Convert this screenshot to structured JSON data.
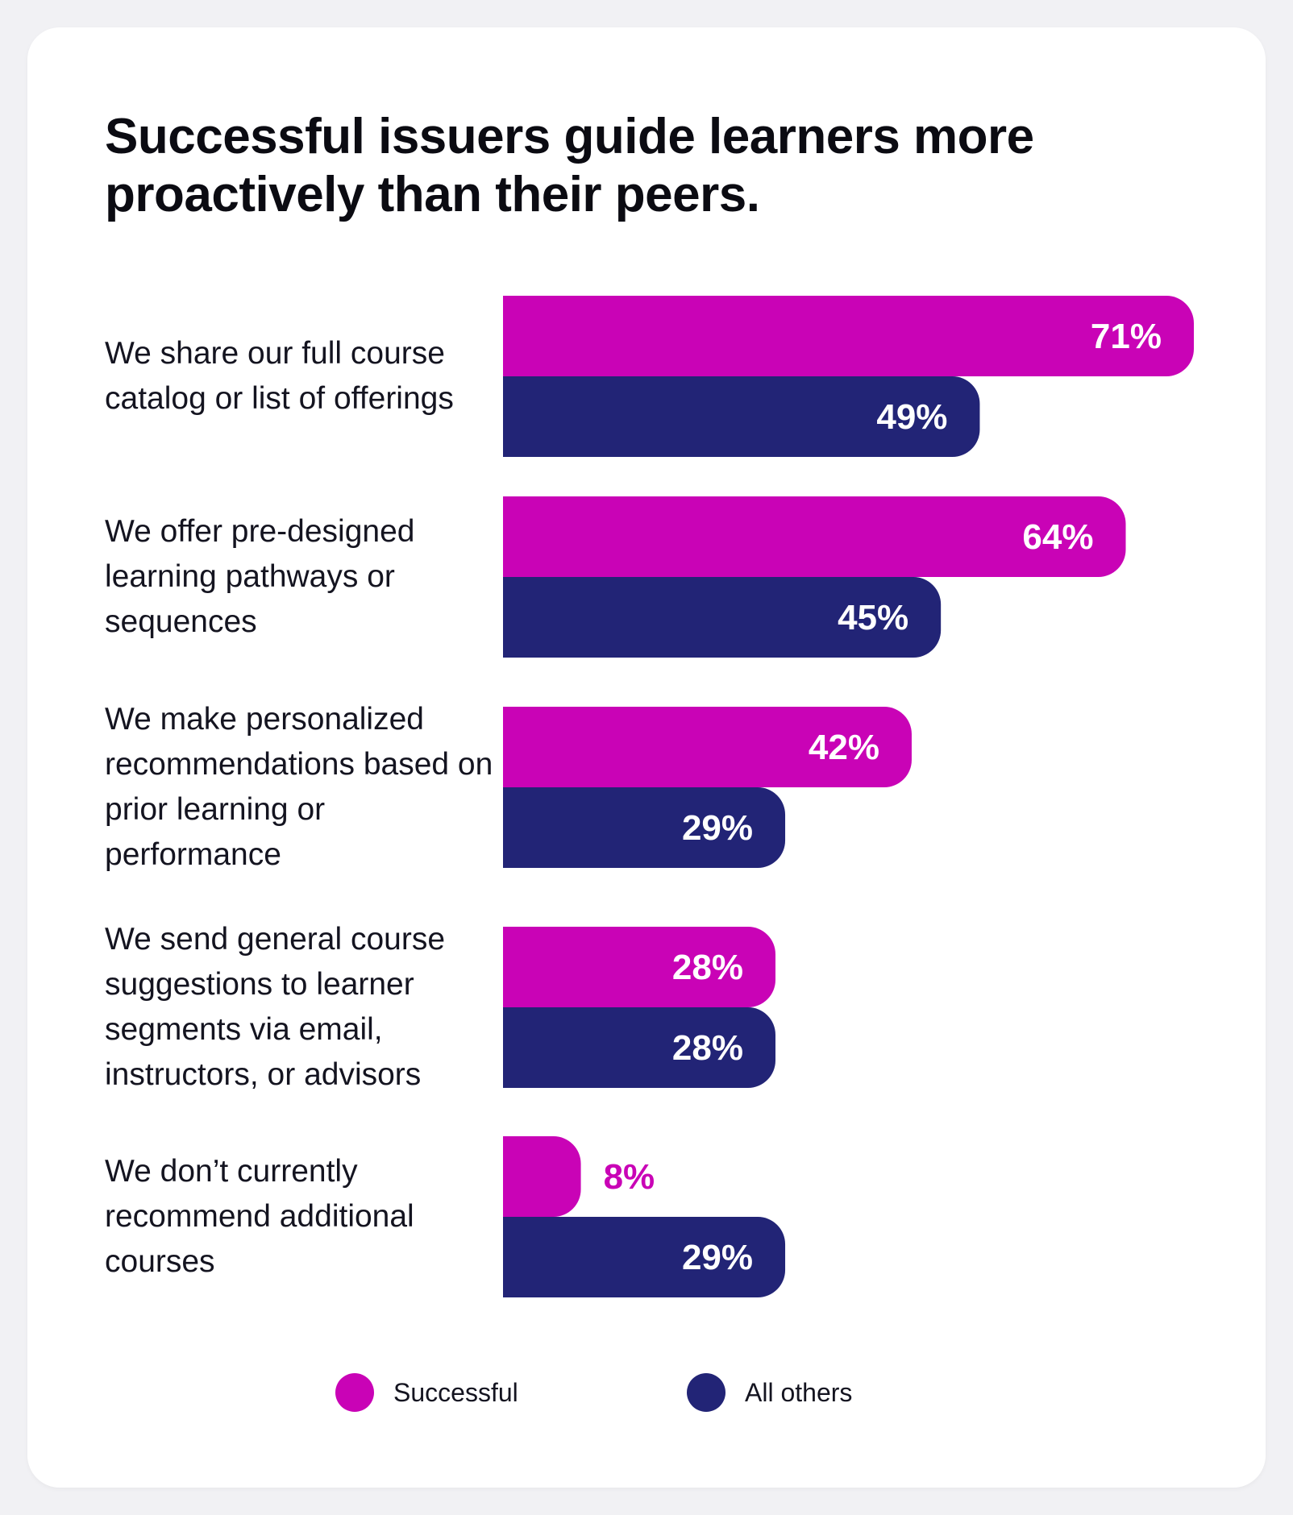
{
  "chart_data": {
    "type": "bar",
    "orientation": "horizontal",
    "title": "Successful issuers guide learners more proactively than their peers.",
    "categories": [
      "We share our full course catalog or list of offerings",
      "We offer pre-designed learning pathways or sequences",
      "We make personalized recommendations based on prior learning or performance",
      "We send general course suggestions to learner segments via email, instructors, or advisors",
      "We don’t currently recommend additional courses"
    ],
    "series": [
      {
        "name": "Successful",
        "color": "#c903b6",
        "values": [
          71,
          64,
          42,
          28,
          8
        ],
        "labels": [
          "71%",
          "64%",
          "42%",
          "28%",
          "8%"
        ]
      },
      {
        "name": "All others",
        "color": "#222476",
        "values": [
          49,
          45,
          29,
          28,
          29
        ],
        "labels": [
          "49%",
          "45%",
          "29%",
          "28%",
          "29%"
        ]
      }
    ],
    "xlabel": "",
    "ylabel": "",
    "xlim": [
      0,
      71
    ],
    "grid": false,
    "legend_position": "bottom"
  }
}
